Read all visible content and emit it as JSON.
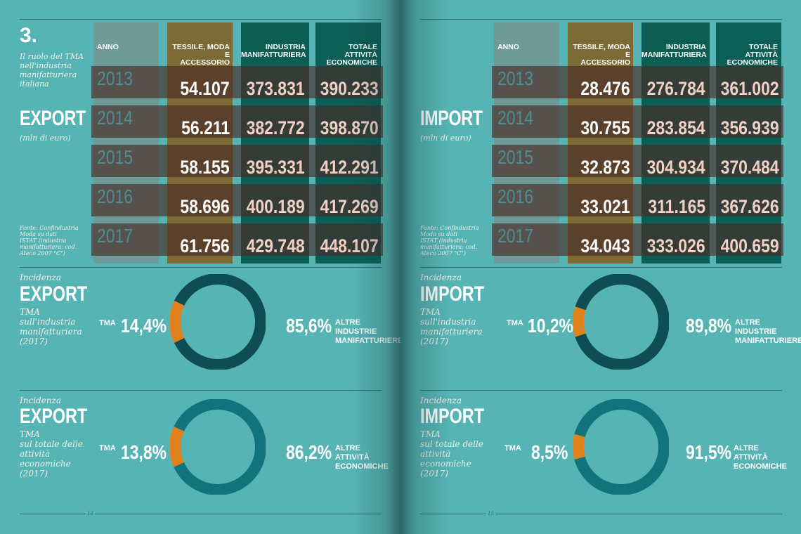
{
  "headers": {
    "anno": "ANNO",
    "tessile": [
      "TESSILE, MODA E",
      "ACCESSORIO"
    ],
    "industria": [
      "INDUSTRIA",
      "MANIFATTURIERA"
    ],
    "totale": [
      "TOTALE ATTIVITÀ",
      "ECONOMICHE"
    ]
  },
  "left": {
    "section_number": "3.",
    "caption": [
      "Il ruolo del TMA",
      "nell'industria",
      "manifatturiera",
      "italiana"
    ],
    "title": "EXPORT",
    "unit": "(mln di euro)",
    "source": [
      "Fonte: Confindustria",
      "Moda su dati",
      "ISTAT (industria",
      "manifatturiera: cod.",
      "Ateco 2007 \"C\")"
    ],
    "page_number": "14"
  },
  "right": {
    "title": "IMPORT",
    "unit": "(mln di euro)",
    "source": [
      "Fonte: Confindustria",
      "Moda su dati",
      "ISTAT (industria",
      "manifatturiera: cod.",
      "Ateco 2007 \"C\")"
    ],
    "page_number": "15"
  },
  "colors": {
    "background": "#57b4b5",
    "tessile_col": "#7c6a35",
    "industria_col": "#0d5e52",
    "totale_col": "#0b5f56",
    "anno_col": "#6f9a98",
    "band": "#4a2a26",
    "donut_other_dark": "#0e4d53",
    "donut_other_teal": "#11747c",
    "donut_tma": "#e0821b"
  },
  "chart_data": [
    {
      "type": "table",
      "title": "EXPORT",
      "columns": [
        "ANNO",
        "TESSILE, MODA E ACCESSORIO",
        "INDUSTRIA MANIFATTURIERA",
        "TOTALE ATTIVITÀ ECONOMICHE"
      ],
      "rows": [
        [
          "2013",
          "54.107",
          "373.831",
          "390.233"
        ],
        [
          "2014",
          "56.211",
          "382.772",
          "398.870"
        ],
        [
          "2015",
          "58.155",
          "395.331",
          "412.291"
        ],
        [
          "2016",
          "58.696",
          "400.189",
          "417.269"
        ],
        [
          "2017",
          "61.756",
          "429.748",
          "448.107"
        ]
      ]
    },
    {
      "type": "table",
      "title": "IMPORT",
      "columns": [
        "ANNO",
        "TESSILE, MODA E ACCESSORIO",
        "INDUSTRIA MANIFATTURIERA",
        "TOTALE ATTIVITÀ ECONOMICHE"
      ],
      "rows": [
        [
          "2013",
          "28.476",
          "276.784",
          "361.002"
        ],
        [
          "2014",
          "30.755",
          "283.854",
          "356.939"
        ],
        [
          "2015",
          "32.873",
          "304.934",
          "370.484"
        ],
        [
          "2016",
          "33.021",
          "311.165",
          "367.626"
        ],
        [
          "2017",
          "34.043",
          "333.026",
          "400.659"
        ]
      ]
    },
    {
      "type": "pie",
      "label_top": "Incidenza",
      "title": "EXPORT",
      "subtitle": [
        "TMA",
        "sull'industria",
        "manifatturiera",
        "(2017)"
      ],
      "tma_label": "TMA",
      "tma_text": "14,4%",
      "other_text": "85,6%",
      "other_label": [
        "ALTRE INDUSTRIE",
        "MANIFATTURIERE"
      ],
      "slices": [
        {
          "name": "TMA",
          "value": 14.4,
          "color": "#e0821b"
        },
        {
          "name": "ALTRE INDUSTRIE MANIFATTURIERE",
          "value": 85.6,
          "color": "#0e4d53"
        }
      ]
    },
    {
      "type": "pie",
      "label_top": "Incidenza",
      "title": "EXPORT",
      "subtitle": [
        "TMA",
        "sul totale delle",
        "attività",
        "economiche",
        "(2017)"
      ],
      "tma_label": "TMA",
      "tma_text": "13,8%",
      "other_text": "86,2%",
      "other_label": [
        "ALTRE ATTIVITÀ",
        "ECONOMICHE"
      ],
      "slices": [
        {
          "name": "TMA",
          "value": 13.8,
          "color": "#e0821b"
        },
        {
          "name": "ALTRE ATTIVITÀ ECONOMICHE",
          "value": 86.2,
          "color": "#11747c"
        }
      ]
    },
    {
      "type": "pie",
      "label_top": "Incidenza",
      "title": "IMPORT",
      "subtitle": [
        "TMA",
        "sull'industria",
        "manifatturiera",
        "(2017)"
      ],
      "tma_label": "TMA",
      "tma_text": "10,2%",
      "other_text": "89,8%",
      "other_label": [
        "ALTRE INDUSTRIE",
        "MANIFATTURIERE"
      ],
      "slices": [
        {
          "name": "TMA",
          "value": 10.2,
          "color": "#e0821b"
        },
        {
          "name": "ALTRE INDUSTRIE MANIFATTURIERE",
          "value": 89.8,
          "color": "#0e4d53"
        }
      ]
    },
    {
      "type": "pie",
      "label_top": "Incidenza",
      "title": "IMPORT",
      "subtitle": [
        "TMA",
        "sul totale delle",
        "attività",
        "economiche",
        "(2017)"
      ],
      "tma_label": "TMA",
      "tma_text": "8,5%",
      "other_text": "91,5%",
      "other_label": [
        "ALTRE ATTIVITÀ",
        "ECONOMICHE"
      ],
      "slices": [
        {
          "name": "TMA",
          "value": 8.5,
          "color": "#e0821b"
        },
        {
          "name": "ALTRE ATTIVITÀ ECONOMICHE",
          "value": 91.5,
          "color": "#11747c"
        }
      ]
    }
  ]
}
